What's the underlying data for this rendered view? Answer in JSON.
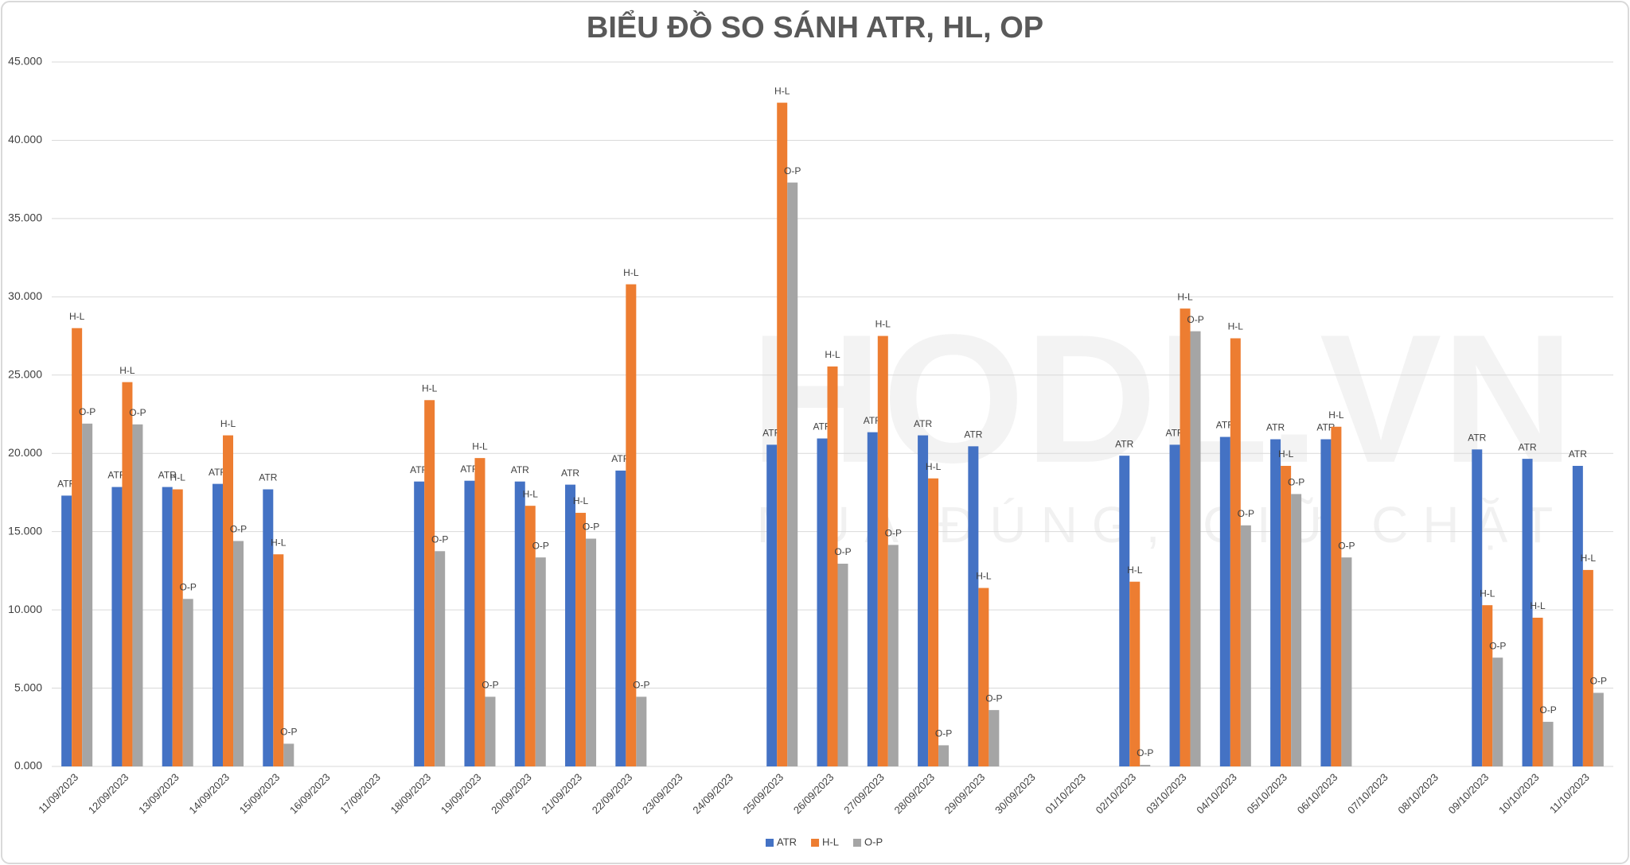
{
  "chart_data": {
    "type": "bar",
    "title": "BIỂU ĐỒ SO SÁNH ATR, HL, OP",
    "watermark": "HODL.VN",
    "watermark_slogan": "MUA ĐÚNG, GIỮ CHẶT",
    "categories": [
      "11/09/2023",
      "12/09/2023",
      "13/09/2023",
      "14/09/2023",
      "15/09/2023",
      "16/09/2023",
      "17/09/2023",
      "18/09/2023",
      "19/09/2023",
      "20/09/2023",
      "21/09/2023",
      "22/09/2023",
      "23/09/2023",
      "24/09/2023",
      "25/09/2023",
      "26/09/2023",
      "27/09/2023",
      "28/09/2023",
      "29/09/2023",
      "30/09/2023",
      "01/10/2023",
      "02/10/2023",
      "03/10/2023",
      "04/10/2023",
      "05/10/2023",
      "06/10/2023",
      "07/10/2023",
      "08/10/2023",
      "09/10/2023",
      "10/10/2023",
      "11/10/2023"
    ],
    "series": [
      {
        "name": "ATR",
        "color": "#4472c4",
        "values": [
          17300,
          17850,
          17850,
          18050,
          17700,
          null,
          null,
          18200,
          18250,
          18200,
          18000,
          18900,
          null,
          null,
          20550,
          20950,
          21350,
          21150,
          20450,
          null,
          null,
          19850,
          20550,
          21050,
          20900,
          20900,
          null,
          null,
          20250,
          19650,
          19200
        ]
      },
      {
        "name": "H-L",
        "color": "#ed7d31",
        "values": [
          28000,
          24550,
          17700,
          21150,
          13550,
          null,
          null,
          23400,
          19700,
          16650,
          16200,
          30800,
          null,
          null,
          42400,
          25550,
          27500,
          18400,
          11400,
          null,
          null,
          11800,
          29250,
          27350,
          19200,
          21700,
          null,
          null,
          10300,
          9500,
          12550
        ]
      },
      {
        "name": "O-P",
        "color": "#a5a5a5",
        "values": [
          21900,
          21850,
          10700,
          14400,
          1450,
          null,
          null,
          13750,
          4450,
          13350,
          14550,
          4450,
          null,
          null,
          37300,
          12950,
          14150,
          1350,
          3600,
          null,
          null,
          100,
          27800,
          15400,
          17400,
          13350,
          null,
          null,
          6950,
          2850,
          4700
        ]
      }
    ],
    "ylim": [
      0,
      45000
    ],
    "yticks": [
      {
        "value": 0,
        "label": "0.000"
      },
      {
        "value": 5000,
        "label": "5.000"
      },
      {
        "value": 10000,
        "label": "10.000"
      },
      {
        "value": 15000,
        "label": "15.000"
      },
      {
        "value": 20000,
        "label": "20.000"
      },
      {
        "value": 25000,
        "label": "25.000"
      },
      {
        "value": 30000,
        "label": "30.000"
      },
      {
        "value": 35000,
        "label": "35.000"
      },
      {
        "value": 40000,
        "label": "40.000"
      },
      {
        "value": 45000,
        "label": "45.000"
      }
    ],
    "grid": true,
    "legend": "bottom"
  }
}
